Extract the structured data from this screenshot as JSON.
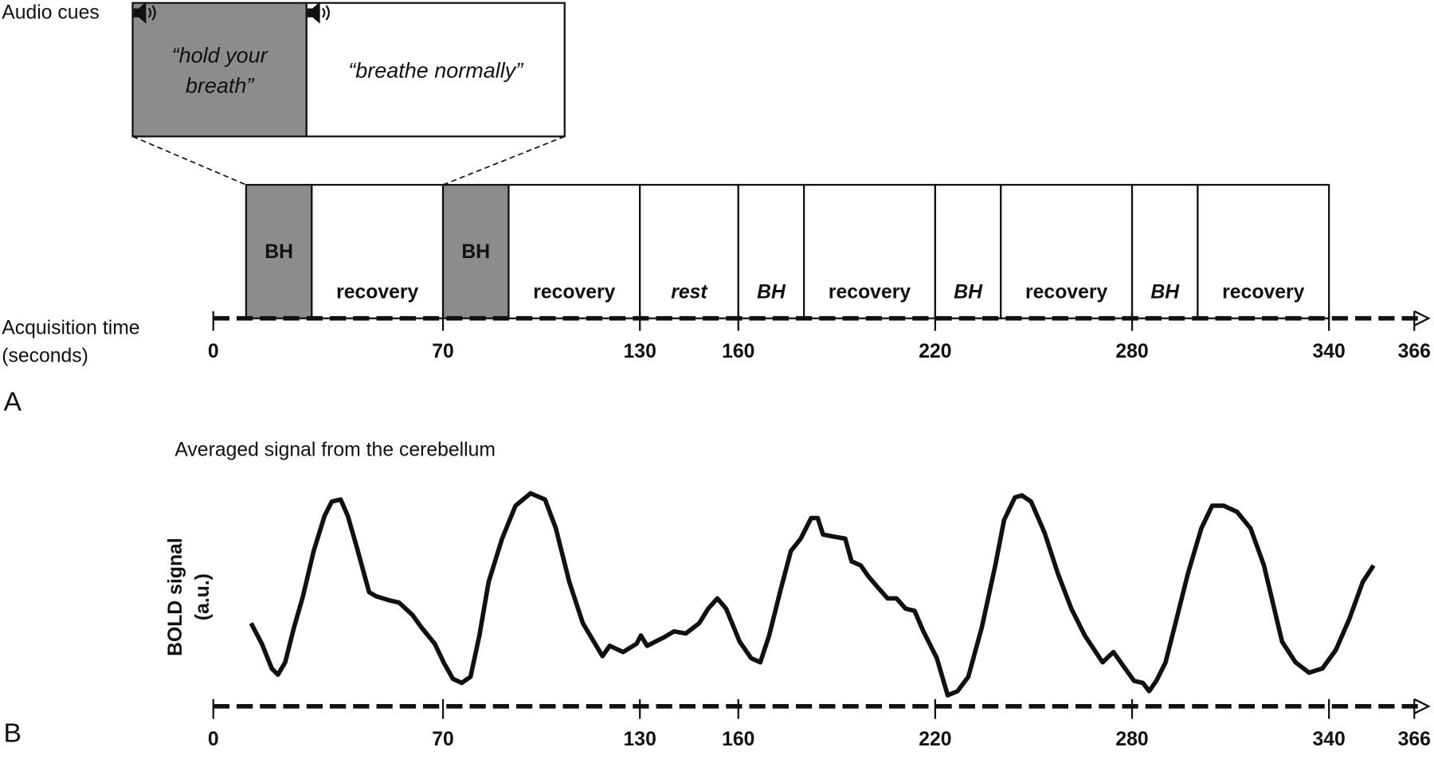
{
  "timeline": {
    "audio_label": "Audio cues",
    "cues": [
      {
        "lines": [
          "“hold your",
          "breath”"
        ]
      },
      {
        "lines": [
          "“breathe normally”"
        ]
      }
    ],
    "axis_label": [
      "Acquisition time",
      "(seconds)"
    ],
    "blocks": [
      {
        "label": "BH",
        "start": 10,
        "end": 30
      },
      {
        "label": "recovery",
        "start": 30,
        "end": 70
      },
      {
        "label": "BH",
        "start": 70,
        "end": 90
      },
      {
        "label": "recovery",
        "start": 90,
        "end": 130
      },
      {
        "label": "rest",
        "start": 130,
        "end": 160
      },
      {
        "label": "BH",
        "start": 160,
        "end": 180
      },
      {
        "label": "recovery",
        "start": 180,
        "end": 220
      },
      {
        "label": "BH",
        "start": 220,
        "end": 240
      },
      {
        "label": "recovery",
        "start": 240,
        "end": 280
      },
      {
        "label": "BH",
        "start": 280,
        "end": 300
      },
      {
        "label": "recovery",
        "start": 300,
        "end": 340
      }
    ],
    "xlim": [
      0,
      366
    ],
    "xticks": [
      0,
      70,
      130,
      160,
      220,
      280,
      340,
      366
    ],
    "panel": "A"
  },
  "chart_data": {
    "type": "line",
    "title": "Averaged signal from the cerebellum",
    "ylabel": [
      "BOLD signal",
      "(a.u.)"
    ],
    "panel": "B",
    "color": "#111111",
    "xlim": [
      0,
      366
    ],
    "xticks": [
      0,
      70,
      130,
      160,
      220,
      280,
      340,
      366
    ],
    "ylim": [
      0,
      100
    ],
    "x": [
      11.5,
      14.8,
      17.8,
      19.7,
      21.9,
      24.6,
      27.3,
      30.6,
      33.9,
      36.1,
      38.8,
      41.0,
      43.7,
      47.5,
      49.7,
      53.8,
      56.6,
      60.7,
      63.4,
      67.5,
      70.2,
      73.0,
      75.7,
      78.4,
      81.1,
      83.9,
      88.0,
      92.1,
      96.7,
      101.1,
      104.4,
      108.5,
      112.6,
      118.6,
      120.8,
      124.9,
      129.0,
      130.3,
      132.2,
      137.2,
      140.4,
      144.0,
      148.1,
      150.8,
      153.6,
      156.3,
      160.4,
      163.9,
      166.7,
      169.4,
      172.7,
      176.0,
      179.0,
      182.2,
      184.2,
      185.8,
      189.1,
      192.6,
      194.5,
      197.3,
      199.5,
      202.7,
      205.5,
      208.2,
      211.0,
      213.7,
      216.4,
      220.5,
      223.8,
      226.8,
      230.1,
      234.2,
      238.3,
      241.0,
      244.3,
      246.4,
      249.2,
      253.3,
      257.4,
      261.5,
      265.6,
      271.0,
      274.3,
      277.9,
      280.6,
      283.3,
      285.2,
      287.4,
      290.2,
      292.9,
      297.0,
      301.1,
      304.4,
      307.9,
      312.0,
      316.1,
      320.2,
      325.7,
      329.8,
      333.9,
      338.0,
      342.1,
      346.2,
      350.3,
      353.6
    ],
    "values": [
      36,
      26,
      14,
      11,
      17,
      34,
      49,
      71,
      88,
      95,
      96,
      88,
      73,
      51,
      49,
      47,
      46,
      40,
      34,
      26,
      17,
      9,
      7,
      10,
      30,
      56,
      77,
      93,
      99,
      96,
      82,
      56,
      36,
      20,
      25,
      22,
      26,
      30,
      25,
      29,
      32,
      31,
      36,
      43,
      48,
      43,
      27,
      19,
      17,
      30,
      51,
      71,
      77,
      87,
      87,
      79,
      78,
      77,
      66,
      64,
      59,
      53,
      48,
      48,
      43,
      42,
      32,
      19,
      1,
      3,
      10,
      34,
      64,
      86,
      97,
      98,
      95,
      80,
      60,
      43,
      30,
      17,
      22,
      14,
      8,
      7,
      3,
      8,
      17,
      34,
      60,
      82,
      93,
      93,
      90,
      82,
      64,
      27,
      17,
      12,
      14,
      23,
      38,
      56,
      64
    ]
  }
}
